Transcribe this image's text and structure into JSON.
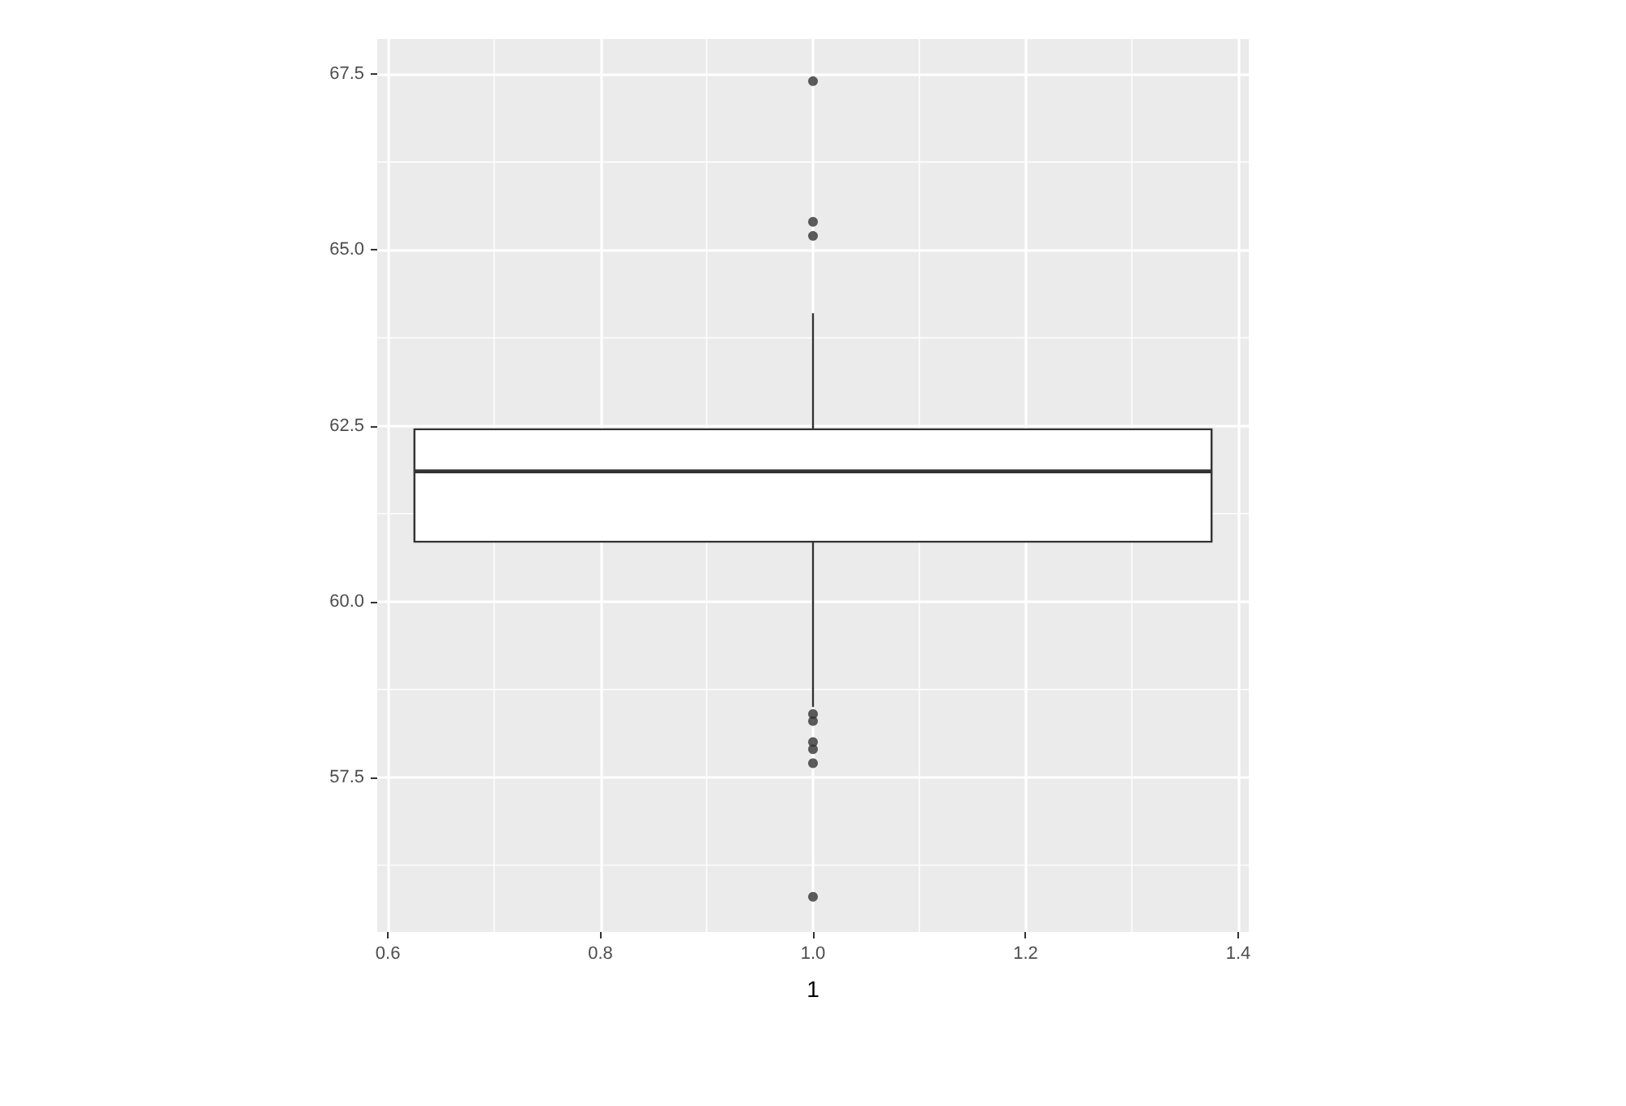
{
  "chart_data": {
    "type": "box",
    "xlabel": "1",
    "categories": [
      null
    ],
    "boxes": [
      {
        "low": 58.5,
        "q1": 60.85,
        "median": 61.85,
        "q3": 62.45,
        "high": 64.1,
        "outliers": [
          67.4,
          65.4,
          65.2,
          58.4,
          58.3,
          58.0,
          57.9,
          57.7,
          55.8
        ]
      }
    ],
    "x2lim": [
      0.59,
      1.41
    ],
    "x2ticks": [
      0.6,
      0.8,
      {
        "value": 1,
        "label": "1.0"
      },
      1.2,
      1.4
    ],
    "ylim": [
      55.3,
      68.0
    ],
    "yticks": [
      57.5,
      {
        "value": 60,
        "label": "60.0"
      },
      62.5,
      {
        "value": 65,
        "label": "65.0"
      },
      67.5
    ],
    "grid": true
  }
}
